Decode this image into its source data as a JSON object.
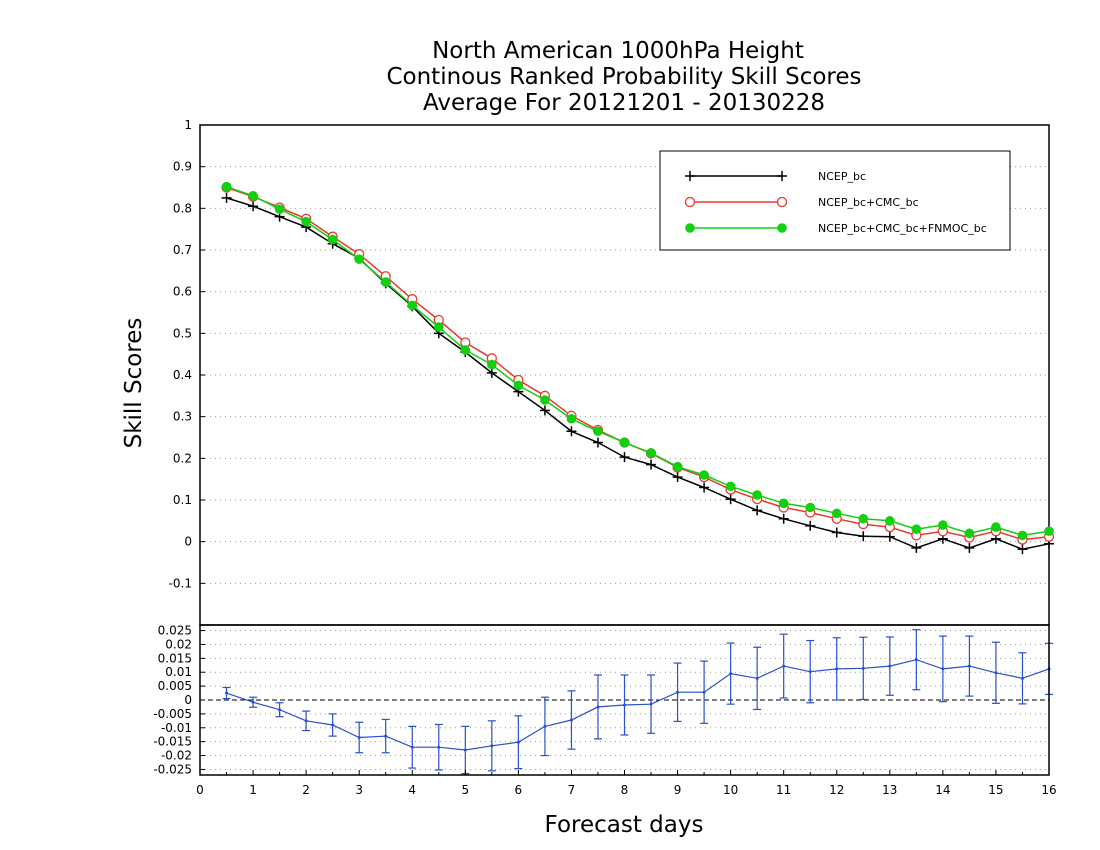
{
  "title": {
    "line1": "North American 1000hPa Height",
    "line2": "Continous Ranked Probability Skill Scores",
    "line3": "Average For 20121201 - 20130228"
  },
  "chart_data": [
    {
      "type": "line",
      "ylabel": "Skill Scores",
      "xlim": [
        0,
        16
      ],
      "ylim": [
        -0.2,
        1
      ],
      "yticks": [
        "1",
        "0.9",
        "0.8",
        "0.7",
        "0.6",
        "0.5",
        "0.4",
        "0.3",
        "0.2",
        "0.1",
        "0",
        "-0.1"
      ],
      "grid": true,
      "legend_position": "top-right",
      "x": [
        0.5,
        1.0,
        1.5,
        2.0,
        2.5,
        3.0,
        3.5,
        4.0,
        4.5,
        5.0,
        5.5,
        6.0,
        6.5,
        7.0,
        7.5,
        8.0,
        8.5,
        9.0,
        9.5,
        10.0,
        10.5,
        11.0,
        11.5,
        12.0,
        12.5,
        13.0,
        13.5,
        14.0,
        14.5,
        15.0,
        15.5,
        16.0
      ],
      "series": [
        {
          "name": "NCEP_bc",
          "color": "#000000",
          "marker": "plus",
          "values": [
            0.825,
            0.805,
            0.78,
            0.755,
            0.715,
            0.68,
            0.62,
            0.565,
            0.5,
            0.455,
            0.405,
            0.36,
            0.315,
            0.265,
            0.238,
            0.203,
            0.185,
            0.155,
            0.13,
            0.102,
            0.075,
            0.055,
            0.038,
            0.022,
            0.013,
            0.012,
            -0.015,
            0.007,
            -0.015,
            0.007,
            -0.018,
            -0.005
          ]
        },
        {
          "name": "NCEP_bc+CMC_bc",
          "color": "#e8392f",
          "marker": "open-circle",
          "values": [
            0.85,
            0.828,
            0.802,
            0.775,
            0.732,
            0.69,
            0.637,
            0.582,
            0.532,
            0.478,
            0.44,
            0.388,
            0.35,
            0.302,
            0.268,
            0.238,
            0.212,
            0.178,
            0.155,
            0.125,
            0.102,
            0.082,
            0.07,
            0.055,
            0.042,
            0.035,
            0.015,
            0.025,
            0.01,
            0.025,
            0.005,
            0.012
          ]
        },
        {
          "name": "NCEP_bc+CMC_bc+FNMOC_bc",
          "color": "#10d010",
          "marker": "filled-circle",
          "values": [
            0.852,
            0.83,
            0.798,
            0.768,
            0.725,
            0.678,
            0.623,
            0.567,
            0.515,
            0.46,
            0.425,
            0.375,
            0.34,
            0.295,
            0.265,
            0.238,
            0.213,
            0.18,
            0.16,
            0.133,
            0.112,
            0.092,
            0.082,
            0.068,
            0.055,
            0.05,
            0.03,
            0.04,
            0.02,
            0.035,
            0.015,
            0.025
          ]
        }
      ]
    },
    {
      "type": "line",
      "xlabel": "Forecast days",
      "xlim": [
        0,
        16
      ],
      "xticks": [
        "0",
        "1",
        "2",
        "3",
        "4",
        "5",
        "6",
        "7",
        "8",
        "9",
        "10",
        "11",
        "12",
        "13",
        "14",
        "15",
        "16"
      ],
      "ylim": [
        -0.027,
        0.027
      ],
      "yticks": [
        "0.025",
        "0.02",
        "0.015",
        "0.01",
        "0.005",
        "0",
        "-0.005",
        "-0.01",
        "-0.015",
        "-0.02",
        "-0.025"
      ],
      "grid": true,
      "error_bars": true,
      "x": [
        0.5,
        1.0,
        1.5,
        2.0,
        2.5,
        3.0,
        3.5,
        4.0,
        4.5,
        5.0,
        5.5,
        6.0,
        6.5,
        7.0,
        7.5,
        8.0,
        8.5,
        9.0,
        9.5,
        10.0,
        10.5,
        11.0,
        11.5,
        12.0,
        12.5,
        13.0,
        13.5,
        14.0,
        14.5,
        15.0,
        15.5,
        16.0
      ],
      "series": [
        {
          "color": "#2a4fd0",
          "values": [
            0.0025,
            -0.0008,
            -0.0035,
            -0.0075,
            -0.009,
            -0.0135,
            -0.013,
            -0.017,
            -0.017,
            -0.018,
            -0.0165,
            -0.0152,
            -0.0095,
            -0.0072,
            -0.0025,
            -0.0018,
            -0.0015,
            0.0028,
            0.0028,
            0.0095,
            0.0078,
            0.0122,
            0.0102,
            0.0112,
            0.0114,
            0.0122,
            0.0145,
            0.0112,
            0.0122,
            0.0098,
            0.0078,
            0.0112
          ],
          "error": [
            0.002,
            0.0018,
            0.0025,
            0.0035,
            0.004,
            0.0055,
            0.006,
            0.0075,
            0.0082,
            0.0085,
            0.009,
            0.0095,
            0.0105,
            0.0105,
            0.0115,
            0.0108,
            0.0105,
            0.0105,
            0.0112,
            0.011,
            0.0112,
            0.0115,
            0.0112,
            0.0112,
            0.0112,
            0.0105,
            0.0108,
            0.0118,
            0.0108,
            0.011,
            0.0092,
            0.0092
          ]
        }
      ]
    }
  ]
}
